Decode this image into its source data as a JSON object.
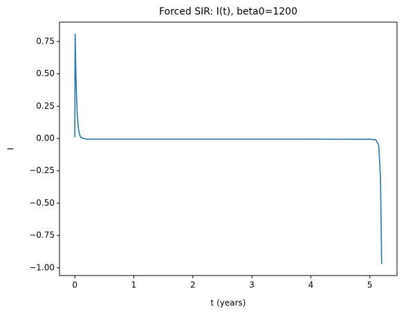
{
  "chart_data": {
    "type": "line",
    "title": "Forced SIR: I(t), beta0=1200",
    "x_label": "t (years)",
    "y_label": "I",
    "series": [
      {
        "color": "#1f77b4",
        "x": [
          0,
          0.005,
          0.02,
          0.04,
          0.06,
          0.08,
          0.1,
          0.15,
          0.2,
          1,
          2,
          3,
          4,
          5,
          5.1,
          5.15,
          5.18,
          5.2
        ],
        "values": [
          0.01,
          0.81,
          0.45,
          0.2,
          0.08,
          0.03,
          0.01,
          0.0,
          -0.005,
          -0.005,
          -0.005,
          -0.005,
          -0.005,
          -0.006,
          -0.01,
          -0.05,
          -0.3,
          -0.97
        ]
      }
    ],
    "xlim": [
      -0.26,
      5.46
    ],
    "xticks": [
      0,
      1,
      2,
      3,
      4,
      5
    ],
    "ylim": [
      -1.06,
      0.9
    ],
    "yticks": [
      {
        "value": -1,
        "label": "−1.00"
      },
      {
        "value": -0.75,
        "label": "−0.75"
      },
      {
        "value": -0.5,
        "label": "−0.50"
      },
      {
        "value": -0.25,
        "label": "−0.25"
      },
      {
        "value": 0,
        "label": "0.00"
      },
      {
        "value": 0.25,
        "label": "0.25"
      },
      {
        "value": 0.5,
        "label": "0.50"
      },
      {
        "value": 0.75,
        "label": "0.75"
      }
    ],
    "grid": false
  }
}
